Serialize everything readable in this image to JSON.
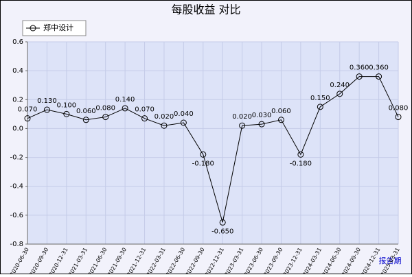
{
  "chart_data": {
    "type": "line",
    "title": "每股收益  对比",
    "x_label": "报告期",
    "categories": [
      "2020-06-30",
      "2020-09-30",
      "2020-12-31",
      "2021-03-31",
      "2021-06-30",
      "2021-09-30",
      "2021-12-31",
      "2022-03-31",
      "2022-06-30",
      "2022-09-30",
      "2022-12-31",
      "2023-03-31",
      "2023-06-30",
      "2023-09-30",
      "2023-12-31",
      "2024-03-31",
      "2024-06-30",
      "2024-09-30",
      "2024-12-31",
      "2025-03-31"
    ],
    "series": [
      {
        "name": "郑中设计",
        "color": "#000000",
        "values": [
          0.07,
          0.13,
          0.1,
          0.06,
          0.08,
          0.14,
          0.07,
          0.02,
          0.04,
          -0.18,
          -0.65,
          0.02,
          0.03,
          0.06,
          -0.18,
          0.15,
          0.24,
          0.36,
          0.36,
          0.08
        ],
        "value_labels": [
          "0.070",
          "0.130",
          "0.100",
          "0.060",
          "0.080",
          "0.140",
          "0.070",
          "0.020",
          "0.040",
          "-0.180",
          "-0.650",
          "0.020",
          "0.030",
          "0.060",
          "-0.180",
          "0.150",
          "0.240",
          "0.360",
          "0.360",
          "0.080"
        ]
      }
    ],
    "ylim": [
      -0.8,
      0.6
    ],
    "yticks": [
      0.6,
      0.4,
      0.2,
      {
        "value": 0,
        "label": "0.0"
      },
      -0.2,
      -0.4,
      -0.6,
      -0.8
    ],
    "grid": true,
    "legend": "top-left"
  }
}
